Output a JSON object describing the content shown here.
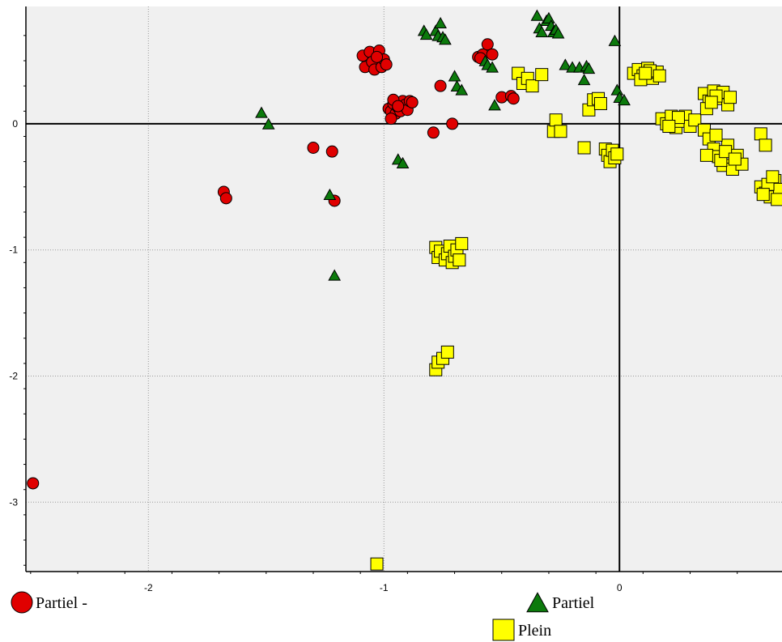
{
  "chart_data": {
    "type": "scatter",
    "xlim": [
      -2.52,
      0.69
    ],
    "ylim": [
      -3.55,
      0.93
    ],
    "grid": true,
    "zero_lines": true,
    "x_ticks": [
      -2,
      -1,
      0
    ],
    "x_tick_labels": [
      "-2",
      "-1",
      "0"
    ],
    "y_ticks": [
      0,
      -1,
      -2,
      -3
    ],
    "y_tick_labels": [
      "0",
      "-1",
      "-2",
      "-3"
    ],
    "legend_position": "bottom",
    "series": [
      {
        "name": "Partiel -",
        "marker": "circle",
        "color": "#e00000",
        "points": [
          [
            -1.09,
            0.54
          ],
          [
            -1.08,
            0.45
          ],
          [
            -1.06,
            0.57
          ],
          [
            -1.05,
            0.49
          ],
          [
            -1.04,
            0.43
          ],
          [
            -1.02,
            0.58
          ],
          [
            -1.01,
            0.45
          ],
          [
            -1.0,
            0.51
          ],
          [
            -0.99,
            0.47
          ],
          [
            -1.03,
            0.53
          ],
          [
            -0.98,
            0.12
          ],
          [
            -0.97,
            0.1
          ],
          [
            -0.96,
            0.16
          ],
          [
            -0.95,
            0.08
          ],
          [
            -0.94,
            0.13
          ],
          [
            -0.93,
            0.1
          ],
          [
            -0.92,
            0.18
          ],
          [
            -0.91,
            0.15
          ],
          [
            -0.9,
            0.11
          ],
          [
            -0.89,
            0.18
          ],
          [
            -0.88,
            0.17
          ],
          [
            -0.97,
            0.04
          ],
          [
            -0.96,
            0.19
          ],
          [
            -0.94,
            0.14
          ],
          [
            -0.76,
            0.3
          ],
          [
            -0.79,
            -0.07
          ],
          [
            -0.71,
            0.0
          ],
          [
            -0.6,
            0.53
          ],
          [
            -0.58,
            0.55
          ],
          [
            -0.56,
            0.63
          ],
          [
            -0.54,
            0.55
          ],
          [
            -0.59,
            0.52
          ],
          [
            -0.5,
            0.21
          ],
          [
            -0.46,
            0.22
          ],
          [
            -0.45,
            0.2
          ],
          [
            -1.3,
            -0.19
          ],
          [
            -1.22,
            -0.22
          ],
          [
            -1.21,
            -0.61
          ],
          [
            -1.68,
            -0.54
          ],
          [
            -1.67,
            -0.59
          ],
          [
            -2.49,
            -2.85
          ]
        ]
      },
      {
        "name": "Partiel",
        "marker": "triangle",
        "color": "#0c7a0c",
        "points": [
          [
            -0.83,
            0.74
          ],
          [
            -0.82,
            0.71
          ],
          [
            -0.78,
            0.74
          ],
          [
            -0.77,
            0.7
          ],
          [
            -0.76,
            0.8
          ],
          [
            -0.75,
            0.69
          ],
          [
            -0.74,
            0.67
          ],
          [
            -0.7,
            0.38
          ],
          [
            -0.69,
            0.3
          ],
          [
            -0.67,
            0.27
          ],
          [
            -0.57,
            0.5
          ],
          [
            -0.56,
            0.47
          ],
          [
            -0.54,
            0.45
          ],
          [
            -0.53,
            0.15
          ],
          [
            -0.35,
            0.86
          ],
          [
            -0.34,
            0.76
          ],
          [
            -0.33,
            0.73
          ],
          [
            -0.31,
            0.82
          ],
          [
            -0.3,
            0.84
          ],
          [
            -0.29,
            0.78
          ],
          [
            -0.28,
            0.73
          ],
          [
            -0.27,
            0.75
          ],
          [
            -0.26,
            0.72
          ],
          [
            -0.23,
            0.47
          ],
          [
            -0.2,
            0.45
          ],
          [
            -0.17,
            0.45
          ],
          [
            -0.14,
            0.46
          ],
          [
            -0.13,
            0.44
          ],
          [
            -0.15,
            0.35
          ],
          [
            -0.02,
            0.66
          ],
          [
            -0.01,
            0.27
          ],
          [
            0.0,
            0.21
          ],
          [
            0.02,
            0.19
          ],
          [
            -1.52,
            0.09
          ],
          [
            -1.49,
            0.0
          ],
          [
            -0.94,
            -0.28
          ],
          [
            -0.92,
            -0.31
          ],
          [
            -1.23,
            -0.56
          ],
          [
            -1.21,
            -1.2
          ]
        ]
      },
      {
        "name": "Plein",
        "marker": "square",
        "color": "#ffff00",
        "points": [
          [
            0.06,
            0.4
          ],
          [
            0.08,
            0.43
          ],
          [
            0.1,
            0.38
          ],
          [
            0.12,
            0.44
          ],
          [
            0.14,
            0.36
          ],
          [
            0.16,
            0.41
          ],
          [
            0.09,
            0.35
          ],
          [
            0.13,
            0.42
          ],
          [
            0.17,
            0.38
          ],
          [
            0.11,
            0.4
          ],
          [
            0.18,
            0.04
          ],
          [
            0.2,
            0.0
          ],
          [
            0.22,
            0.06
          ],
          [
            0.24,
            -0.03
          ],
          [
            0.26,
            0.02
          ],
          [
            0.28,
            0.06
          ],
          [
            0.3,
            -0.02
          ],
          [
            0.32,
            0.03
          ],
          [
            0.25,
            0.05
          ],
          [
            0.21,
            -0.02
          ],
          [
            0.36,
            0.24
          ],
          [
            0.38,
            0.18
          ],
          [
            0.4,
            0.26
          ],
          [
            0.42,
            0.2
          ],
          [
            0.44,
            0.25
          ],
          [
            0.46,
            0.15
          ],
          [
            0.37,
            0.12
          ],
          [
            0.41,
            0.22
          ],
          [
            0.47,
            0.21
          ],
          [
            0.39,
            0.17
          ],
          [
            0.36,
            -0.05
          ],
          [
            0.38,
            -0.12
          ],
          [
            0.4,
            -0.2
          ],
          [
            0.42,
            -0.26
          ],
          [
            0.44,
            -0.33
          ],
          [
            0.46,
            -0.17
          ],
          [
            0.48,
            -0.36
          ],
          [
            0.5,
            -0.25
          ],
          [
            0.52,
            -0.32
          ],
          [
            0.43,
            -0.29
          ],
          [
            0.37,
            -0.25
          ],
          [
            0.45,
            -0.22
          ],
          [
            0.49,
            -0.28
          ],
          [
            0.41,
            -0.09
          ],
          [
            0.6,
            -0.5
          ],
          [
            0.62,
            -0.55
          ],
          [
            0.64,
            -0.58
          ],
          [
            0.66,
            -0.45
          ],
          [
            0.68,
            -0.52
          ],
          [
            0.63,
            -0.48
          ],
          [
            0.67,
            -0.6
          ],
          [
            0.61,
            -0.56
          ],
          [
            0.65,
            -0.42
          ],
          [
            0.6,
            -0.08
          ],
          [
            0.62,
            -0.17
          ],
          [
            -0.43,
            0.4
          ],
          [
            -0.41,
            0.32
          ],
          [
            -0.39,
            0.36
          ],
          [
            -0.37,
            0.3
          ],
          [
            -0.33,
            0.39
          ],
          [
            -0.28,
            -0.06
          ],
          [
            -0.27,
            0.03
          ],
          [
            -0.25,
            -0.06
          ],
          [
            -0.15,
            -0.19
          ],
          [
            -0.13,
            0.11
          ],
          [
            -0.11,
            0.19
          ],
          [
            -0.09,
            0.2
          ],
          [
            -0.08,
            0.16
          ],
          [
            -0.06,
            -0.2
          ],
          [
            -0.05,
            -0.25
          ],
          [
            -0.04,
            -0.3
          ],
          [
            -0.03,
            -0.21
          ],
          [
            -0.02,
            -0.27
          ],
          [
            -0.01,
            -0.24
          ],
          [
            -0.78,
            -0.98
          ],
          [
            -0.77,
            -1.06
          ],
          [
            -0.76,
            -1.01
          ],
          [
            -0.74,
            -1.08
          ],
          [
            -0.73,
            -1.03
          ],
          [
            -0.72,
            -0.97
          ],
          [
            -0.71,
            -1.1
          ],
          [
            -0.7,
            -1.05
          ],
          [
            -0.69,
            -1.0
          ],
          [
            -0.67,
            -0.95
          ],
          [
            -0.68,
            -1.08
          ],
          [
            -0.78,
            -1.95
          ],
          [
            -0.77,
            -1.89
          ],
          [
            -0.75,
            -1.86
          ],
          [
            -0.73,
            -1.81
          ],
          [
            -1.03,
            -3.49
          ]
        ]
      }
    ]
  }
}
